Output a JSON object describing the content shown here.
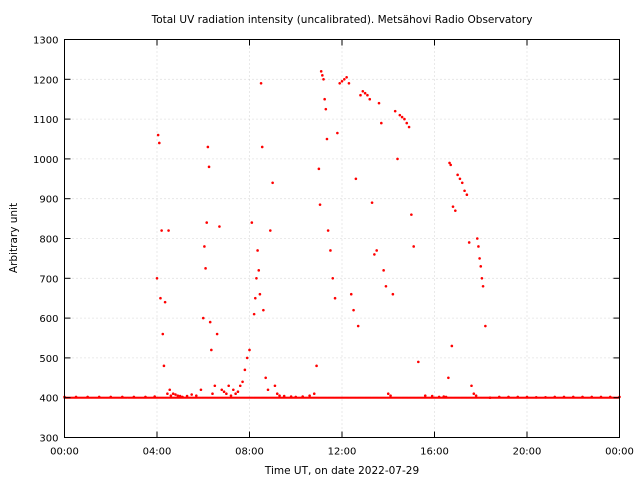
{
  "chart_data": {
    "type": "scatter",
    "title": "Total UV radiation intensity (uncalibrated). Metsähovi Radio Observatory",
    "xlabel": "Time UT, on date 2022-07-29",
    "ylabel": "Arbitrary unit",
    "xlim": [
      0,
      24
    ],
    "ylim": [
      300,
      1300
    ],
    "x_ticks": [
      {
        "value": 0,
        "label": "00:00"
      },
      {
        "value": 4,
        "label": "04:00"
      },
      {
        "value": 8,
        "label": "08:00"
      },
      {
        "value": 12,
        "label": "12:00"
      },
      {
        "value": 16,
        "label": "16:00"
      },
      {
        "value": 20,
        "label": "20:00"
      },
      {
        "value": 24,
        "label": "00:00"
      }
    ],
    "y_ticks": [
      300,
      400,
      500,
      600,
      700,
      800,
      900,
      1000,
      1100,
      1200,
      1300
    ],
    "grid": true,
    "point_color": "#ff0000",
    "baseline": 400,
    "series": [
      {
        "x": [
          0.0,
          0.5,
          1.0,
          1.5,
          2.0,
          2.5,
          3.0,
          3.5,
          3.9,
          4.0,
          4.05,
          4.1,
          4.15,
          4.2,
          4.25,
          4.3,
          4.35,
          4.45,
          4.5,
          4.55,
          4.6,
          4.7,
          4.8,
          4.9,
          5.0,
          5.1,
          5.3,
          5.5,
          5.7,
          5.9,
          6.0,
          6.05,
          6.1,
          6.15,
          6.2,
          6.25,
          6.3,
          6.35,
          6.4,
          6.5,
          6.6,
          6.7,
          6.8,
          6.9,
          7.0,
          7.1,
          7.2,
          7.3,
          7.4,
          7.5,
          7.6,
          7.7,
          7.8,
          7.9,
          8.0,
          8.1,
          8.2,
          8.25,
          8.3,
          8.35,
          8.4,
          8.45,
          8.5,
          8.55,
          8.6,
          8.7,
          8.8,
          8.9,
          9.0,
          9.1,
          9.2,
          9.3,
          9.5,
          9.8,
          10.0,
          10.3,
          10.6,
          10.8,
          10.9,
          11.0,
          11.05,
          11.1,
          11.15,
          11.2,
          11.25,
          11.3,
          11.35,
          11.4,
          11.5,
          11.6,
          11.7,
          11.8,
          11.9,
          12.0,
          12.1,
          12.2,
          12.3,
          12.4,
          12.5,
          12.6,
          12.7,
          12.8,
          12.9,
          13.0,
          13.1,
          13.2,
          13.3,
          13.4,
          13.5,
          13.6,
          13.7,
          13.8,
          13.9,
          14.0,
          14.1,
          14.2,
          14.3,
          14.4,
          14.5,
          14.6,
          14.7,
          14.8,
          14.9,
          15.0,
          15.1,
          15.3,
          15.6,
          15.9,
          16.2,
          16.4,
          16.5,
          16.6,
          16.65,
          16.7,
          16.75,
          16.8,
          16.9,
          17.0,
          17.1,
          17.2,
          17.3,
          17.4,
          17.5,
          17.6,
          17.7,
          17.8,
          17.85,
          17.9,
          17.95,
          18.0,
          18.05,
          18.1,
          18.2,
          18.4,
          18.8,
          19.2,
          19.6,
          20.0,
          20.4,
          20.8,
          21.2,
          21.6,
          22.0,
          22.4,
          22.8,
          23.2,
          23.6,
          24.0
        ],
        "y": [
          402,
          402,
          402,
          402,
          402,
          402,
          402,
          402,
          403,
          700,
          1060,
          1040,
          650,
          820,
          560,
          480,
          640,
          410,
          820,
          420,
          405,
          410,
          408,
          405,
          404,
          402,
          404,
          408,
          405,
          420,
          600,
          780,
          725,
          840,
          1030,
          980,
          590,
          520,
          410,
          430,
          560,
          830,
          420,
          415,
          410,
          430,
          405,
          420,
          410,
          415,
          430,
          440,
          470,
          500,
          520,
          840,
          610,
          650,
          700,
          770,
          720,
          660,
          1190,
          1030,
          620,
          450,
          420,
          820,
          940,
          430,
          410,
          405,
          404,
          403,
          402,
          403,
          405,
          410,
          480,
          975,
          885,
          1220,
          1210,
          1200,
          1150,
          1125,
          1050,
          820,
          770,
          700,
          650,
          1065,
          1190,
          1195,
          1200,
          1205,
          1190,
          660,
          620,
          950,
          580,
          1160,
          1170,
          1165,
          1160,
          1150,
          890,
          760,
          770,
          1140,
          1090,
          720,
          680,
          410,
          405,
          660,
          1120,
          1000,
          1110,
          1105,
          1100,
          1090,
          1080,
          860,
          780,
          490,
          405,
          404,
          402,
          403,
          402,
          450,
          990,
          985,
          530,
          880,
          870,
          960,
          950,
          940,
          920,
          910,
          790,
          430,
          410,
          405,
          800,
          780,
          750,
          730,
          700,
          680,
          580,
          400,
          402,
          402,
          402,
          402,
          401,
          401,
          402,
          402,
          402,
          402,
          402,
          402,
          402,
          402
        ]
      }
    ]
  }
}
